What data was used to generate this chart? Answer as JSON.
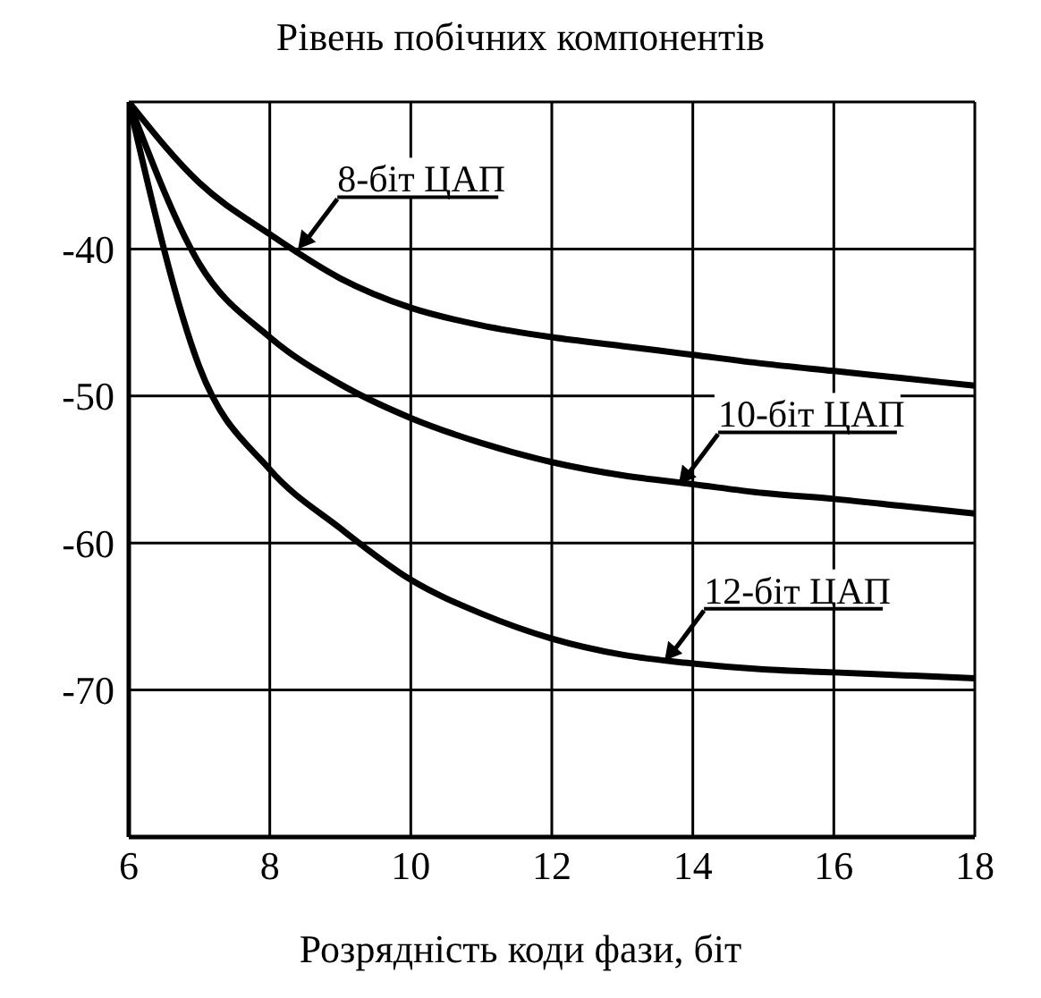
{
  "chart_data": {
    "type": "line",
    "ylabel": "Рівень побічних компонентів",
    "xlabel": "Розрядність коди фази, біт",
    "xlim": [
      6,
      18
    ],
    "xticks": [
      6,
      8,
      10,
      12,
      14,
      16,
      18
    ],
    "ylim": [
      -80,
      -30
    ],
    "yticks": [
      {
        "value": -80,
        "label": null
      },
      -70,
      -60,
      -50,
      -40,
      {
        "value": -30,
        "label": null
      }
    ],
    "grid": true,
    "marker": "none",
    "line_style": "solid",
    "series": [
      {
        "color": "#000000",
        "x": [
          6,
          7,
          8,
          9,
          10,
          11,
          12,
          13,
          14,
          15,
          16,
          17,
          18
        ],
        "values": [
          -30,
          -35.5,
          -39,
          -42,
          -44,
          -45.2,
          -46,
          -46.6,
          -47.2,
          -47.8,
          -48.3,
          -48.8,
          -49.3
        ]
      },
      {
        "color": "#000000",
        "x": [
          6,
          7,
          8,
          9,
          10,
          11,
          12,
          13,
          14,
          15,
          16,
          17,
          18
        ],
        "values": [
          -30,
          -41,
          -46,
          -49.2,
          -51.5,
          -53.2,
          -54.5,
          -55.4,
          -56,
          -56.6,
          -57,
          -57.5,
          -58
        ]
      },
      {
        "color": "#000000",
        "x": [
          6,
          7,
          8,
          9,
          10,
          11,
          12,
          13,
          14,
          15,
          16,
          17,
          18
        ],
        "values": [
          -30,
          -48,
          -55,
          -59,
          -62.5,
          -64.8,
          -66.5,
          -67.6,
          -68.2,
          -68.6,
          -68.8,
          -69,
          -69.2
        ]
      }
    ],
    "annotations": [
      {
        "text": "8-біт ЦАП",
        "x": 8.4,
        "y": -40
      },
      {
        "text": "10-біт ЦАП",
        "x": 13.8,
        "y": -56
      },
      {
        "text": "12-біт ЦАП",
        "x": 13.6,
        "y": -68
      }
    ]
  }
}
